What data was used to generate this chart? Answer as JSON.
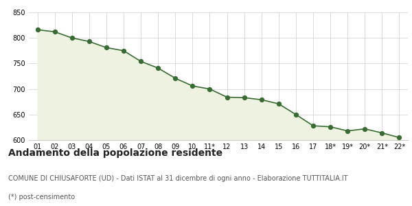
{
  "x_labels": [
    "01",
    "02",
    "03",
    "04",
    "05",
    "06",
    "07",
    "08",
    "09",
    "10",
    "11*",
    "12",
    "13",
    "14",
    "15",
    "16",
    "17",
    "18*",
    "19*",
    "20*",
    "21*",
    "22*"
  ],
  "y_values": [
    816,
    812,
    800,
    793,
    781,
    775,
    754,
    741,
    721,
    706,
    700,
    684,
    683,
    679,
    671,
    650,
    628,
    626,
    618,
    622,
    614,
    605
  ],
  "ylim": [
    600,
    850
  ],
  "yticks": [
    600,
    650,
    700,
    750,
    800,
    850
  ],
  "line_color": "#3a6b35",
  "fill_color": "#eef2e0",
  "marker_color": "#3a6b35",
  "bg_color": "#ffffff",
  "grid_color": "#cccccc",
  "title": "Andamento della popolazione residente",
  "subtitle": "COMUNE DI CHIUSAFORTE (UD) - Dati ISTAT al 31 dicembre di ogni anno - Elaborazione TUTTITALIA.IT",
  "footnote": "(*) post-censimento",
  "title_fontsize": 10,
  "subtitle_fontsize": 7,
  "footnote_fontsize": 7
}
